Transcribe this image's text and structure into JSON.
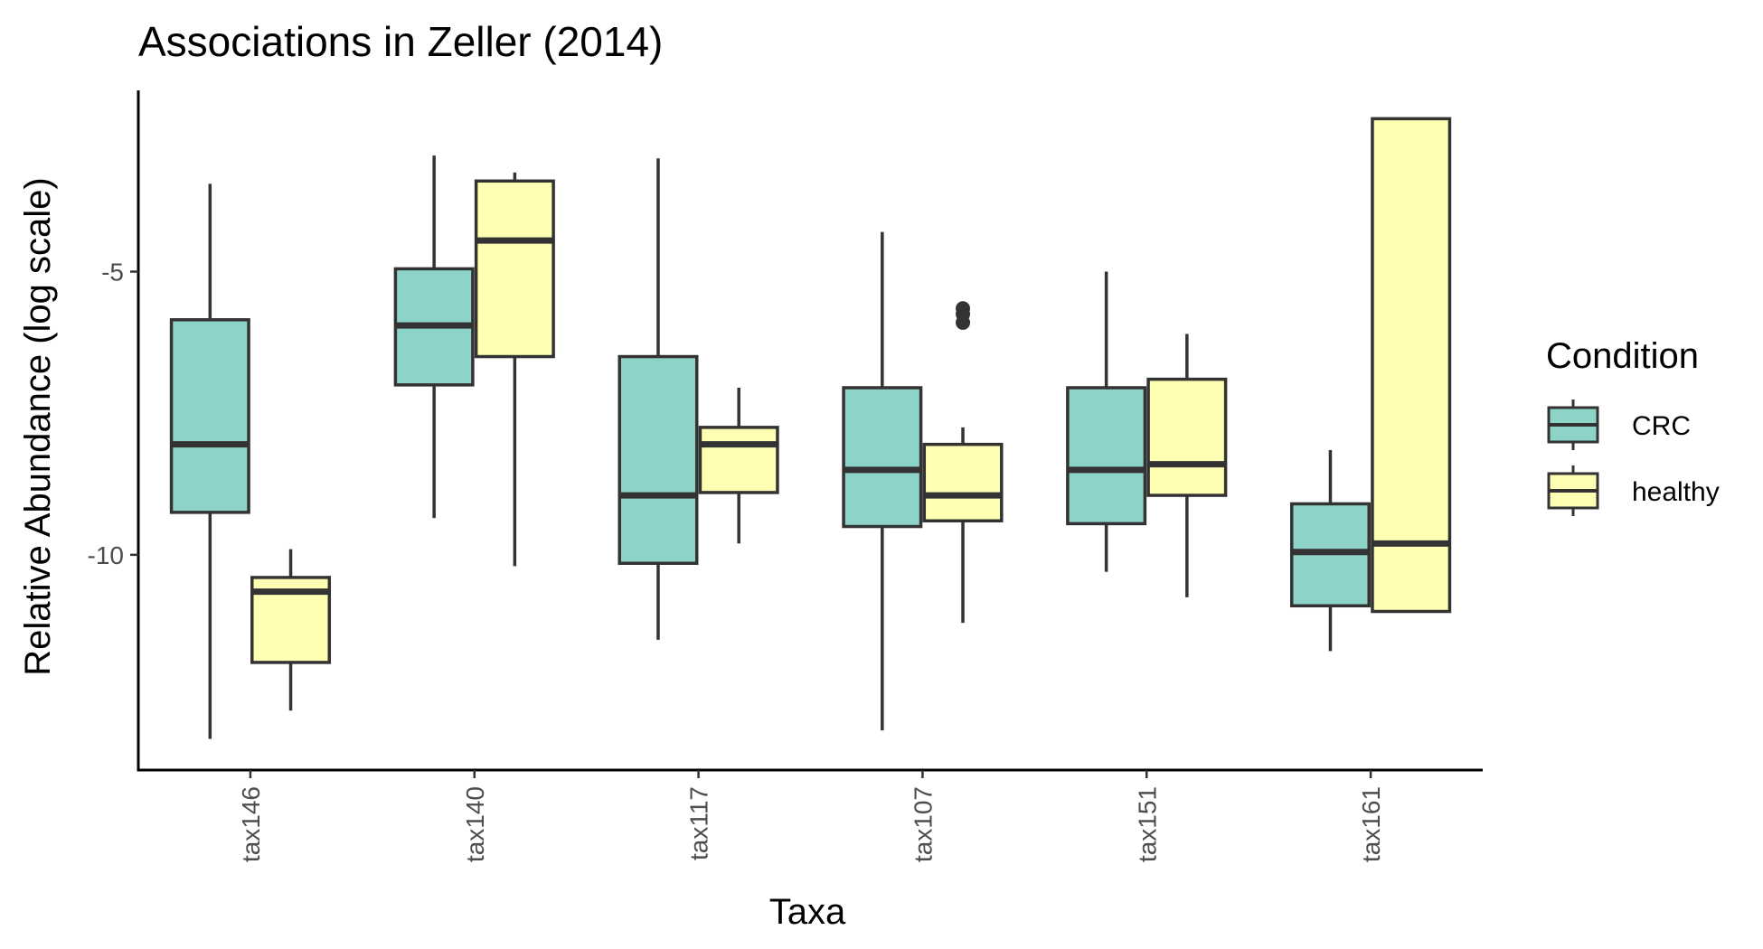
{
  "chart_data": {
    "type": "boxplot",
    "title": "Associations in Zeller (2014)",
    "xlabel": "Taxa",
    "ylabel": "Relative Abundance (log scale)",
    "ylim": [
      -13.8,
      -1.8
    ],
    "yticks": [
      -5,
      -10
    ],
    "categories": [
      "tax146",
      "tax140",
      "tax117",
      "tax107",
      "tax151",
      "tax161"
    ],
    "legend_title": "Condition",
    "legend_position": "right",
    "grid": false,
    "series": [
      {
        "name": "CRC",
        "color": "#8dd3c7",
        "boxes": [
          {
            "whisker_low": -13.25,
            "q1": -9.25,
            "median": -8.05,
            "q3": -5.85,
            "whisker_high": -3.45,
            "outliers": []
          },
          {
            "whisker_low": -9.35,
            "q1": -7.0,
            "median": -5.95,
            "q3": -4.95,
            "whisker_high": -2.95,
            "outliers": []
          },
          {
            "whisker_low": -11.5,
            "q1": -10.15,
            "median": -8.95,
            "q3": -6.5,
            "whisker_high": -3.0,
            "outliers": []
          },
          {
            "whisker_low": -13.1,
            "q1": -9.5,
            "median": -8.5,
            "q3": -7.05,
            "whisker_high": -4.3,
            "outliers": []
          },
          {
            "whisker_low": -10.3,
            "q1": -9.45,
            "median": -8.5,
            "q3": -7.05,
            "whisker_high": -5.0,
            "outliers": []
          },
          {
            "whisker_low": -11.7,
            "q1": -10.9,
            "median": -9.95,
            "q3": -9.1,
            "whisker_high": -8.15,
            "outliers": []
          }
        ]
      },
      {
        "name": "healthy",
        "color": "#ffffb3",
        "boxes": [
          {
            "whisker_low": -12.75,
            "q1": -11.9,
            "median": -10.65,
            "q3": -10.4,
            "whisker_high": -9.9,
            "outliers": []
          },
          {
            "whisker_low": -10.2,
            "q1": -6.5,
            "median": -4.45,
            "q3": -3.4,
            "whisker_high": -3.25,
            "outliers": []
          },
          {
            "whisker_low": -9.8,
            "q1": -8.9,
            "median": -8.05,
            "q3": -7.75,
            "whisker_high": -7.05,
            "outliers": []
          },
          {
            "whisker_low": -11.2,
            "q1": -9.4,
            "median": -8.95,
            "q3": -8.05,
            "whisker_high": -7.75,
            "outliers": [
              -5.65,
              -5.75,
              -5.9
            ]
          },
          {
            "whisker_low": -10.75,
            "q1": -8.95,
            "median": -8.4,
            "q3": -6.9,
            "whisker_high": -6.1,
            "outliers": []
          },
          {
            "whisker_low": -11.0,
            "q1": -11.0,
            "median": -9.8,
            "q3": -2.3,
            "whisker_high": -2.3,
            "outliers": []
          }
        ]
      }
    ]
  }
}
